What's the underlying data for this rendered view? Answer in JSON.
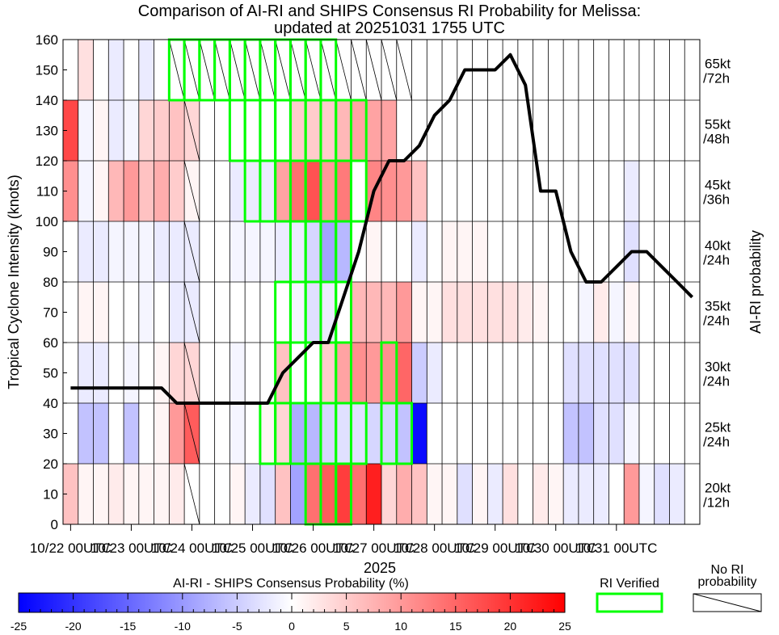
{
  "chart_data": {
    "type": "heatmap",
    "title": "Comparison of AI-RI and SHIPS Consensus RI Probability for Melissa:",
    "subtitle": "updated at 20251031 1755 UTC",
    "ylabel": "Tropical Cyclone Intensity (knots)",
    "right_label": "AI-RI probability",
    "xlabel": "2025",
    "ylim": [
      0,
      160
    ],
    "y_ticks": [
      "0",
      "10",
      "20",
      "30",
      "40",
      "50",
      "60",
      "70",
      "80",
      "90",
      "100",
      "110",
      "120",
      "130",
      "140",
      "150",
      "160"
    ],
    "x_ticks": [
      "10/22 00UTC",
      "10/23 00UTC",
      "10/24 00UTC",
      "10/25 00UTC",
      "10/26 00UTC",
      "10/27 00UTC",
      "10/28 00UTC",
      "10/29 00UTC",
      "10/30 00UTC",
      "10/31 00UTC"
    ],
    "n_columns": 42,
    "bands": [
      {
        "label": "20kt /12h",
        "line1": "20kt",
        "line2": "/12h"
      },
      {
        "label": "25kt /24h",
        "line1": "25kt",
        "line2": "/24h"
      },
      {
        "label": "30kt /24h",
        "line1": "30kt",
        "line2": "/24h"
      },
      {
        "label": "35kt /24h",
        "line1": "35kt",
        "line2": "/24h"
      },
      {
        "label": "40kt /24h",
        "line1": "40kt",
        "line2": "/24h"
      },
      {
        "label": "45kt /36h",
        "line1": "45kt",
        "line2": "/36h"
      },
      {
        "label": "55kt /48h",
        "line1": "55kt",
        "line2": "/48h"
      },
      {
        "label": "65kt /72h",
        "line1": "65kt",
        "line2": "/72h"
      }
    ],
    "cell_values": [
      [
        6,
        1,
        1,
        2,
        1,
        1,
        1,
        2,
        0,
        0,
        0,
        1,
        -2,
        -3,
        6,
        -9,
        14,
        16,
        19,
        14,
        22,
        4,
        8,
        6,
        1,
        1,
        -3,
        1,
        -2,
        3,
        0,
        2,
        1,
        -2,
        -2,
        -2,
        0,
        10,
        -1,
        -3,
        -2,
        0
      ],
      [
        0,
        -6,
        -6,
        0,
        -6,
        0,
        1,
        10,
        16,
        0,
        0,
        -1,
        0,
        1,
        4,
        -8,
        -7,
        -4,
        -3,
        -3,
        -4,
        -4,
        -6,
        -24,
        0,
        0,
        0,
        0,
        0,
        0,
        0,
        0,
        0,
        -6,
        -6,
        -3,
        -3,
        -1,
        0,
        0,
        0,
        0
      ],
      [
        0,
        -2,
        -2,
        0,
        -1,
        0,
        1,
        4,
        4,
        0,
        0,
        -1,
        0,
        0,
        6,
        0,
        0,
        5,
        9,
        11,
        10,
        11,
        15,
        -5,
        -2,
        0,
        0,
        0,
        0,
        0,
        0,
        0,
        0,
        -3,
        -3,
        -3,
        -3,
        -3,
        0,
        0,
        0,
        0
      ],
      [
        0,
        1,
        1,
        0,
        0,
        -1,
        0,
        -2,
        -2,
        0,
        0,
        0,
        0,
        0,
        0,
        -1,
        -3,
        -2,
        0,
        7,
        7,
        7,
        10,
        1,
        1,
        3,
        3,
        3,
        3,
        3,
        2,
        1,
        0,
        0,
        -1,
        2,
        -1,
        1,
        0,
        0,
        0,
        0
      ],
      [
        0,
        -2,
        -2,
        -1,
        -1,
        -1,
        -2,
        -2,
        -2,
        0,
        0,
        -1,
        -1,
        -1,
        -2,
        -2,
        -4,
        -9,
        -7,
        0,
        1,
        0,
        0,
        -2,
        0,
        1,
        1,
        1,
        0,
        0,
        0,
        0,
        0,
        0,
        0,
        0,
        0,
        -3,
        0,
        0,
        0,
        0
      ],
      [
        11,
        -1,
        1,
        7,
        10,
        6,
        8,
        5,
        1,
        0,
        0,
        -2,
        -2,
        -2,
        9,
        14,
        17,
        10,
        13,
        0,
        12,
        11,
        10,
        6,
        0,
        0,
        0,
        0,
        0,
        0,
        0,
        0,
        0,
        0,
        0,
        0,
        0,
        -2,
        0,
        0,
        0,
        0
      ],
      [
        18,
        -1,
        1,
        -2,
        -1,
        4,
        5,
        6,
        4,
        0,
        0,
        0,
        0,
        0,
        0,
        5,
        5,
        5,
        7,
        9,
        9,
        9,
        0,
        0,
        0,
        0,
        0,
        0,
        0,
        0,
        0,
        0,
        0,
        0,
        0,
        0,
        0,
        0,
        0,
        0,
        0,
        0
      ],
      [
        0,
        3,
        0,
        -2,
        0,
        -2,
        0,
        null,
        null,
        null,
        null,
        null,
        null,
        null,
        null,
        null,
        null,
        null,
        null,
        null,
        null,
        null,
        null,
        0,
        0,
        0,
        0,
        0,
        0,
        0,
        0,
        0,
        0,
        0,
        0,
        0,
        0,
        0,
        0,
        0,
        0,
        0
      ]
    ],
    "no_ri_cells": [
      [
        7,
        7
      ],
      [
        7,
        8
      ],
      [
        7,
        9
      ],
      [
        7,
        10
      ],
      [
        7,
        11
      ],
      [
        7,
        12
      ],
      [
        7,
        13
      ],
      [
        7,
        14
      ],
      [
        7,
        15
      ],
      [
        7,
        16
      ],
      [
        7,
        17
      ],
      [
        7,
        18
      ],
      [
        7,
        19
      ],
      [
        7,
        20
      ],
      [
        7,
        21
      ],
      [
        7,
        22
      ],
      [
        6,
        8
      ],
      [
        5,
        8
      ],
      [
        4,
        8
      ],
      [
        3,
        8
      ],
      [
        2,
        8
      ],
      [
        1,
        8
      ],
      [
        0,
        8
      ]
    ],
    "ri_verified": [
      [
        7,
        7
      ],
      [
        7,
        8
      ],
      [
        7,
        9
      ],
      [
        7,
        10
      ],
      [
        7,
        11
      ],
      [
        7,
        12
      ],
      [
        7,
        13
      ],
      [
        7,
        14
      ],
      [
        7,
        15
      ],
      [
        7,
        16
      ],
      [
        7,
        17
      ],
      [
        6,
        11
      ],
      [
        6,
        12
      ],
      [
        6,
        13
      ],
      [
        6,
        14
      ],
      [
        6,
        15
      ],
      [
        6,
        16
      ],
      [
        6,
        17
      ],
      [
        6,
        18
      ],
      [
        6,
        19
      ],
      [
        5,
        12
      ],
      [
        5,
        13
      ],
      [
        5,
        14
      ],
      [
        5,
        15
      ],
      [
        5,
        16
      ],
      [
        5,
        17
      ],
      [
        5,
        18
      ],
      [
        5,
        19
      ],
      [
        4,
        15
      ],
      [
        4,
        16
      ],
      [
        4,
        17
      ],
      [
        4,
        18
      ],
      [
        3,
        14
      ],
      [
        3,
        15
      ],
      [
        3,
        16
      ],
      [
        3,
        17
      ],
      [
        3,
        18
      ],
      [
        2,
        14
      ],
      [
        2,
        15
      ],
      [
        2,
        16
      ],
      [
        2,
        17
      ],
      [
        2,
        18
      ],
      [
        2,
        21
      ],
      [
        1,
        13
      ],
      [
        1,
        14
      ],
      [
        1,
        15
      ],
      [
        1,
        16
      ],
      [
        1,
        17
      ],
      [
        1,
        18
      ],
      [
        1,
        19
      ],
      [
        1,
        21
      ],
      [
        1,
        22
      ],
      [
        0,
        16
      ],
      [
        0,
        17
      ],
      [
        0,
        18
      ]
    ],
    "intensity_series": {
      "name": "Best-track intensity (kt)",
      "x": [
        0.5,
        6.5,
        7.5,
        12.5,
        13.5,
        14.5,
        15.5,
        16.5,
        17.5,
        18.5,
        19.5,
        20.5,
        21.5,
        22.5,
        23.5,
        24.5,
        25.5,
        26.5,
        27.5,
        28.5,
        29.5,
        30.5,
        31.5,
        32.5,
        33.5,
        34.5,
        35.5,
        36.5,
        37.5,
        38.5,
        39.5,
        40.5,
        41.5
      ],
      "y": [
        45,
        45,
        40,
        40,
        40,
        50,
        55,
        60,
        60,
        75,
        90,
        110,
        120,
        120,
        125,
        135,
        140,
        150,
        150,
        150,
        155,
        145,
        110,
        110,
        90,
        80,
        80,
        85,
        90,
        90,
        85,
        80,
        75
      ]
    },
    "colorbar": {
      "label": "AI-RI - SHIPS Consensus Probability (%)",
      "min": -25,
      "max": 25,
      "ticks": [
        "-25",
        "-20",
        "-15",
        "-10",
        "-5",
        "0",
        "5",
        "10",
        "15",
        "20",
        "25"
      ],
      "low_color": "#0000ff",
      "mid_color": "#ffffff",
      "high_color": "#ff0000"
    },
    "legend_ri": "RI Verified",
    "legend_no_ri": "No RI probability",
    "legend_no_ri_line1": "No RI",
    "legend_no_ri_line2": "probability",
    "ri_color": "#00ff00",
    "line_color": "#000000"
  }
}
